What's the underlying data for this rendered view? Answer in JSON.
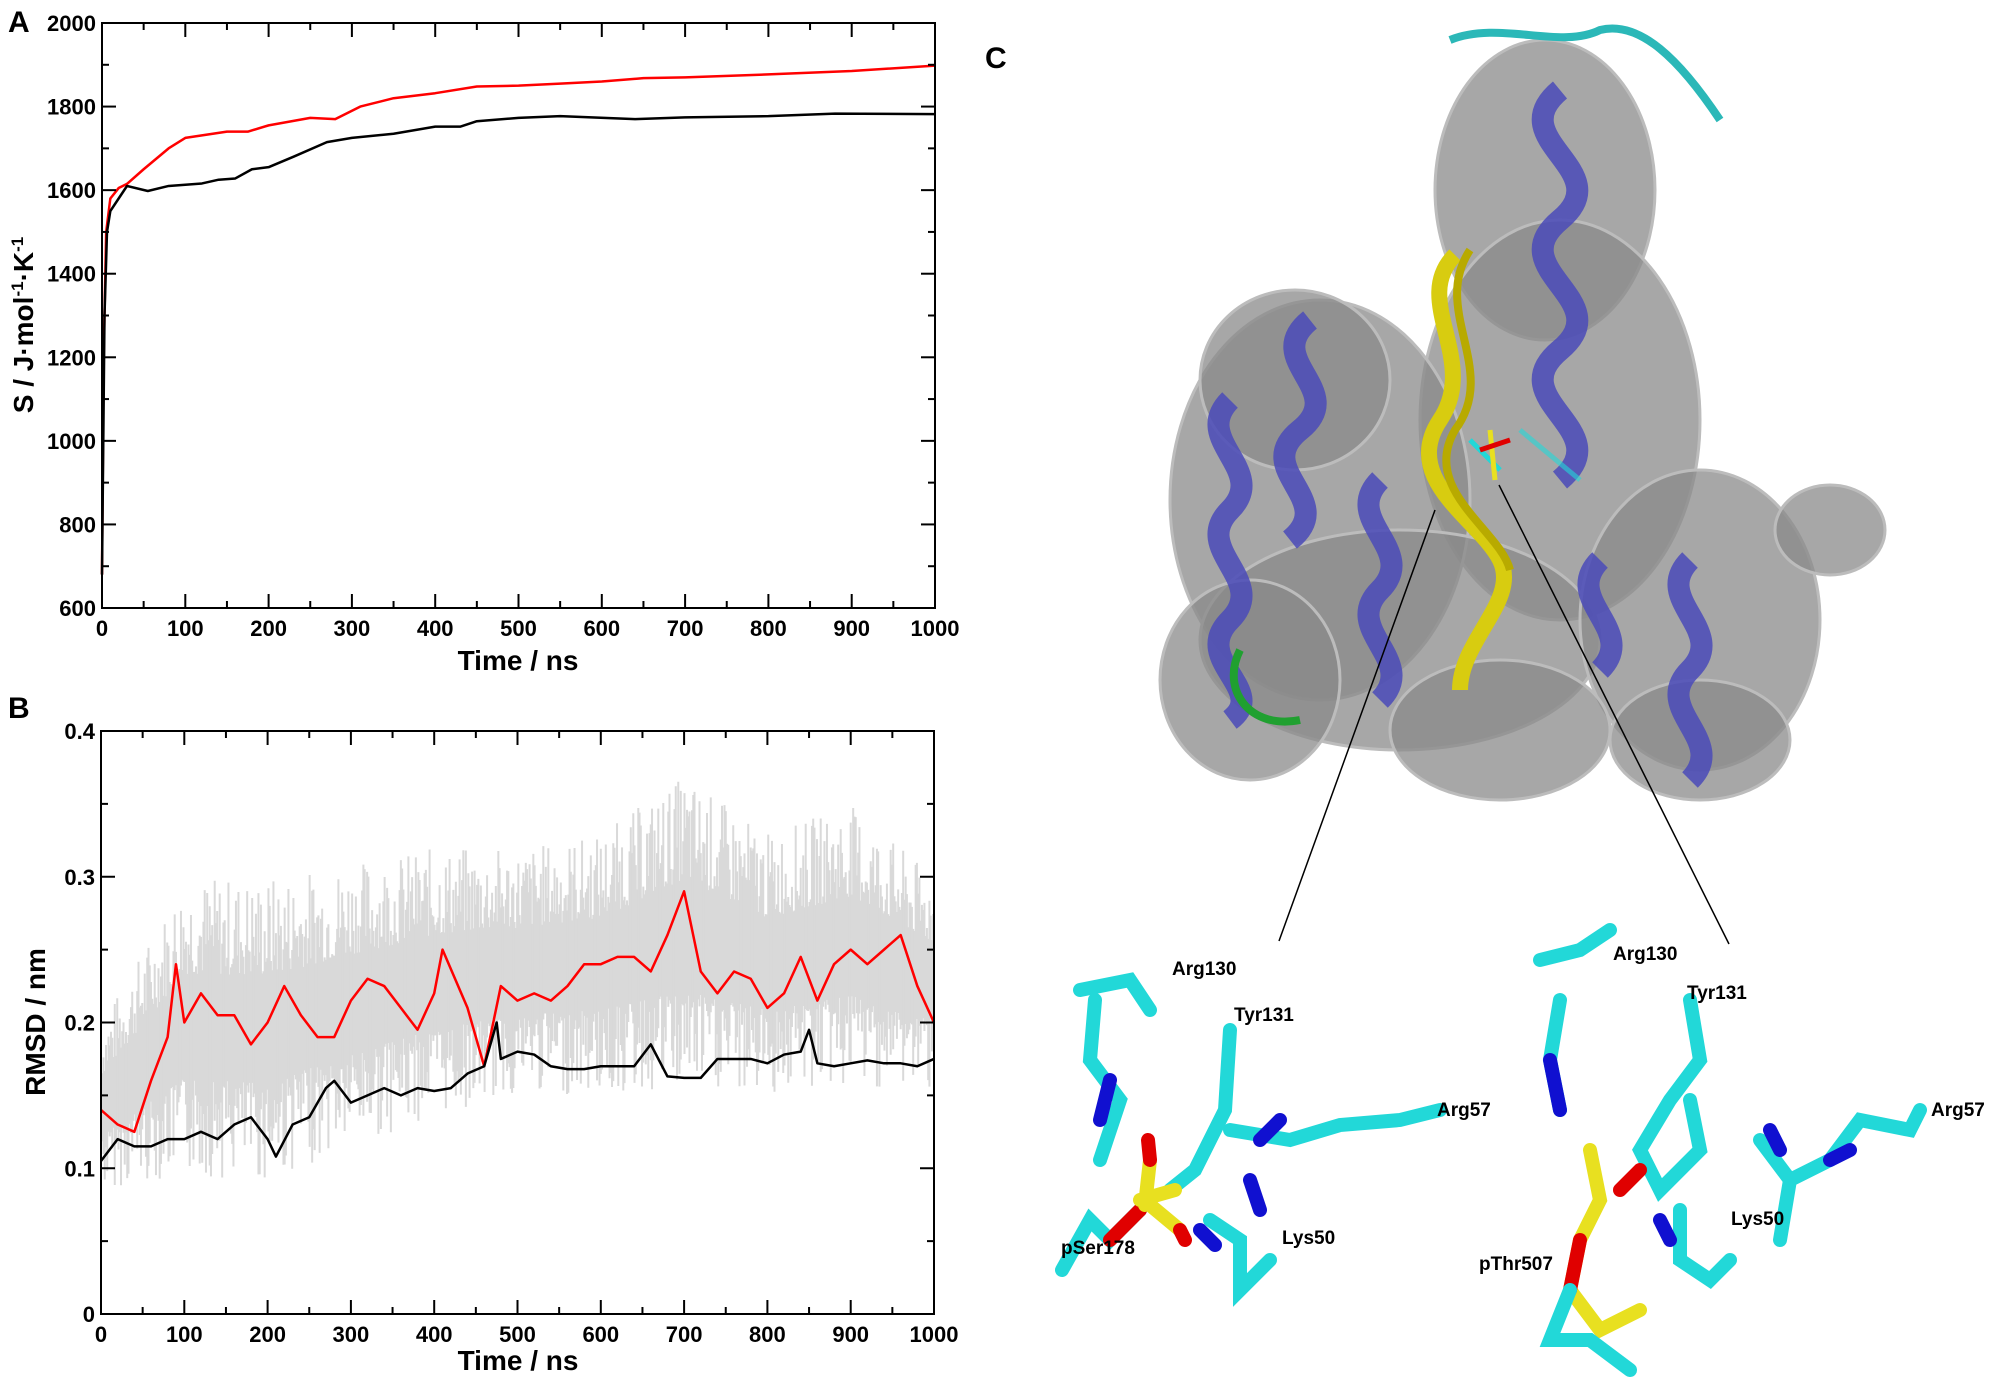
{
  "chart_data": [
    {
      "panel": "A",
      "type": "line",
      "xlabel": "Time / ns",
      "ylabel": "S / J·mol⁻¹·K⁻¹",
      "xlim": [
        0,
        1000
      ],
      "ylim": [
        600,
        2000
      ],
      "xticks": [
        0,
        100,
        200,
        300,
        400,
        500,
        600,
        700,
        800,
        900,
        1000
      ],
      "yticks": [
        600,
        800,
        1000,
        1200,
        1400,
        1600,
        1800,
        2000
      ],
      "grid": false,
      "series": [
        {
          "color": "#ff0000",
          "x": [
            0,
            2,
            5,
            10,
            20,
            30,
            50,
            80,
            100,
            150,
            175,
            200,
            250,
            280,
            310,
            350,
            400,
            450,
            500,
            550,
            600,
            650,
            700,
            800,
            900,
            1000
          ],
          "y": [
            680,
            1200,
            1500,
            1580,
            1605,
            1615,
            1650,
            1700,
            1725,
            1740,
            1740,
            1755,
            1773,
            1770,
            1800,
            1820,
            1832,
            1848,
            1850,
            1855,
            1860,
            1868,
            1870,
            1877,
            1885,
            1898
          ]
        },
        {
          "color": "#000000",
          "x": [
            0,
            3,
            6,
            10,
            20,
            30,
            55,
            80,
            120,
            140,
            160,
            180,
            200,
            230,
            270,
            300,
            350,
            400,
            430,
            450,
            500,
            550,
            640,
            700,
            800,
            880,
            1000
          ],
          "y": [
            680,
            1300,
            1500,
            1550,
            1580,
            1610,
            1598,
            1610,
            1616,
            1625,
            1628,
            1650,
            1655,
            1680,
            1715,
            1725,
            1735,
            1752,
            1752,
            1765,
            1773,
            1777,
            1770,
            1774,
            1777,
            1783,
            1782
          ]
        }
      ]
    },
    {
      "panel": "B",
      "type": "line",
      "xlabel": "Time / ns",
      "ylabel": "RMSD / nm",
      "xlim": [
        0,
        1000
      ],
      "ylim": [
        0,
        0.4
      ],
      "xticks": [
        0,
        100,
        200,
        300,
        400,
        500,
        600,
        700,
        800,
        900,
        1000
      ],
      "yticks": [
        "0",
        "0.1",
        "0.2",
        "0.3",
        "0.4"
      ],
      "grid": false,
      "band": {
        "color": "#d9d9d9",
        "x": [
          0,
          100,
          200,
          300,
          400,
          500,
          600,
          700,
          800,
          900,
          1000
        ],
        "upper": [
          0.2,
          0.3,
          0.3,
          0.31,
          0.32,
          0.32,
          0.33,
          0.37,
          0.33,
          0.35,
          0.3
        ],
        "lower": [
          0.085,
          0.095,
          0.09,
          0.115,
          0.135,
          0.15,
          0.15,
          0.15,
          0.15,
          0.155,
          0.155
        ]
      },
      "series": [
        {
          "color": "#ff0000",
          "x": [
            0,
            20,
            40,
            60,
            80,
            90,
            100,
            120,
            140,
            160,
            180,
            200,
            220,
            240,
            260,
            280,
            300,
            320,
            340,
            360,
            380,
            400,
            410,
            440,
            460,
            480,
            500,
            520,
            540,
            560,
            580,
            600,
            620,
            640,
            660,
            680,
            700,
            720,
            740,
            760,
            780,
            800,
            820,
            840,
            860,
            880,
            900,
            920,
            940,
            960,
            980,
            1000
          ],
          "y": [
            0.14,
            0.13,
            0.125,
            0.16,
            0.19,
            0.24,
            0.2,
            0.22,
            0.205,
            0.205,
            0.185,
            0.2,
            0.225,
            0.205,
            0.19,
            0.19,
            0.215,
            0.23,
            0.225,
            0.21,
            0.195,
            0.22,
            0.25,
            0.21,
            0.17,
            0.225,
            0.215,
            0.22,
            0.215,
            0.225,
            0.24,
            0.24,
            0.245,
            0.245,
            0.235,
            0.26,
            0.29,
            0.235,
            0.22,
            0.235,
            0.23,
            0.21,
            0.22,
            0.245,
            0.215,
            0.24,
            0.25,
            0.24,
            0.25,
            0.26,
            0.225,
            0.2
          ]
        },
        {
          "color": "#000000",
          "x": [
            0,
            20,
            40,
            60,
            80,
            100,
            120,
            140,
            160,
            180,
            200,
            210,
            230,
            250,
            270,
            280,
            300,
            320,
            340,
            360,
            380,
            400,
            420,
            440,
            460,
            475,
            480,
            500,
            520,
            540,
            560,
            580,
            600,
            620,
            640,
            660,
            680,
            700,
            720,
            740,
            760,
            780,
            800,
            820,
            840,
            850,
            860,
            880,
            900,
            920,
            940,
            960,
            980,
            1000
          ],
          "y": [
            0.105,
            0.12,
            0.115,
            0.115,
            0.12,
            0.12,
            0.125,
            0.12,
            0.13,
            0.135,
            0.12,
            0.108,
            0.13,
            0.135,
            0.155,
            0.16,
            0.145,
            0.15,
            0.155,
            0.15,
            0.155,
            0.153,
            0.155,
            0.165,
            0.17,
            0.2,
            0.175,
            0.18,
            0.178,
            0.17,
            0.168,
            0.168,
            0.17,
            0.17,
            0.17,
            0.185,
            0.163,
            0.162,
            0.162,
            0.175,
            0.175,
            0.175,
            0.172,
            0.178,
            0.18,
            0.195,
            0.172,
            0.17,
            0.172,
            0.174,
            0.172,
            0.172,
            0.17,
            0.175
          ]
        }
      ]
    }
  ],
  "panels": {
    "a": "A",
    "b": "B",
    "c": "C"
  },
  "ylabel_a": {
    "main": "S / J·mol",
    "sup1": "-1",
    "mid": "·K",
    "sup2": "-1"
  },
  "structure": {
    "colors": {
      "surface": "#8a8a8a",
      "helix": "#4a4ab8",
      "peptide": "#d8cc10",
      "carbon": "#22d8d8",
      "nitrogen": "#1010d0",
      "oxygen": "#e00000",
      "sulfur_phosphorus": "#e8e020",
      "hydrogen": "#d0d0d0"
    },
    "left_labels": [
      "Arg130",
      "Tyr131",
      "Arg57",
      "Lys50",
      "pSer178"
    ],
    "right_labels": [
      "Arg130",
      "Tyr131",
      "Arg57",
      "Lys50",
      "pThr507"
    ]
  }
}
